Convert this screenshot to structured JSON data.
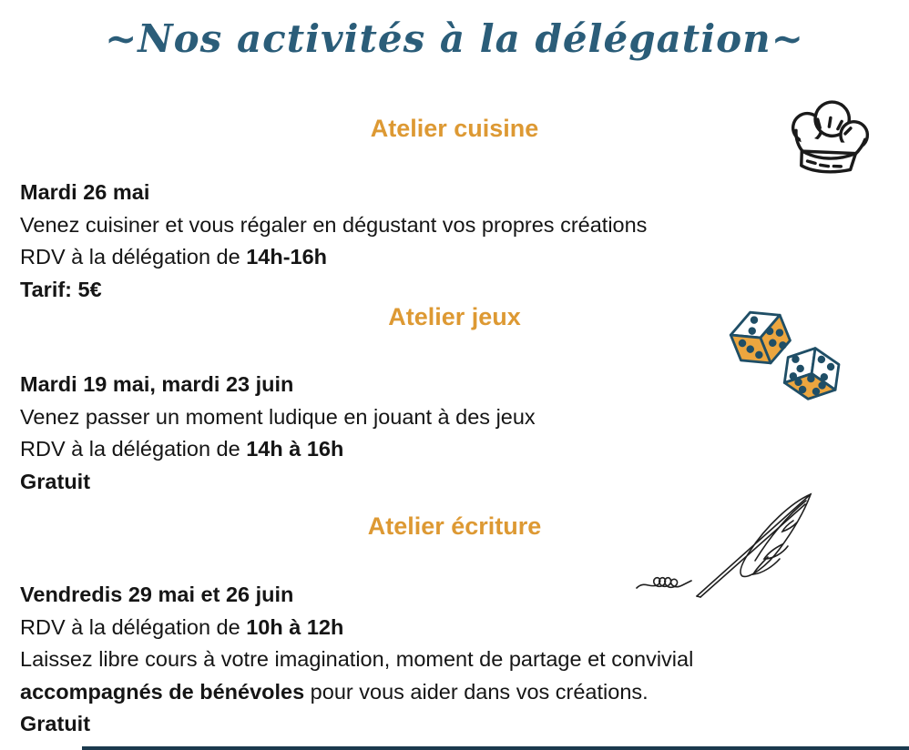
{
  "title": "~Nos activités à la délégation~",
  "colors": {
    "title": "#2B5D79",
    "heading": "#DD9933",
    "body": "#151515",
    "dice_face": "#ECA63F",
    "dice_line": "#1F4E66",
    "bottom_bar": "#1B3A4E"
  },
  "icons": [
    "chef-hat-icon",
    "dice-icon",
    "quill-icon"
  ],
  "sections": [
    {
      "id": "cuisine",
      "heading": "Atelier cuisine",
      "icon": "chef-hat-icon",
      "lines": [
        [
          {
            "t": "Mardi 26 mai",
            "b": 1
          }
        ],
        [
          {
            "t": "Venez cuisiner et vous régaler en dégustant vos propres créations"
          }
        ],
        [
          {
            "t": "RDV à la délégation de "
          },
          {
            "t": "14h-16h",
            "b": 1
          }
        ],
        [
          {
            "t": "Tarif: 5€",
            "b": 1
          }
        ]
      ]
    },
    {
      "id": "jeux",
      "heading": "Atelier jeux",
      "icon": "dice-icon",
      "lines": [
        [
          {
            "t": "Mardi 19 mai, mardi 23 juin",
            "b": 1
          }
        ],
        [
          {
            "t": "Venez passer un moment ludique en jouant à des jeux"
          }
        ],
        [
          {
            "t": "RDV à la délégation de "
          },
          {
            "t": "14h à 16h",
            "b": 1
          }
        ],
        [
          {
            "t": "Gratuit",
            "b": 1
          }
        ]
      ]
    },
    {
      "id": "ecriture",
      "heading": "Atelier écriture",
      "icon": "quill-icon",
      "lines": [
        [
          {
            "t": "Vendredis 29 mai et 26 juin",
            "b": 1
          }
        ],
        [
          {
            "t": "RDV à la délégation de "
          },
          {
            "t": "10h à 12h",
            "b": 1
          }
        ],
        [
          {
            "t": "Laissez libre cours à votre imagination, moment de partage et convivial"
          }
        ],
        [
          {
            "t": "accompagnés de bénévoles",
            "b": 1
          },
          {
            "t": " pour vous aider dans vos créations."
          }
        ],
        [
          {
            "t": "Gratuit",
            "b": 1
          }
        ]
      ]
    }
  ]
}
